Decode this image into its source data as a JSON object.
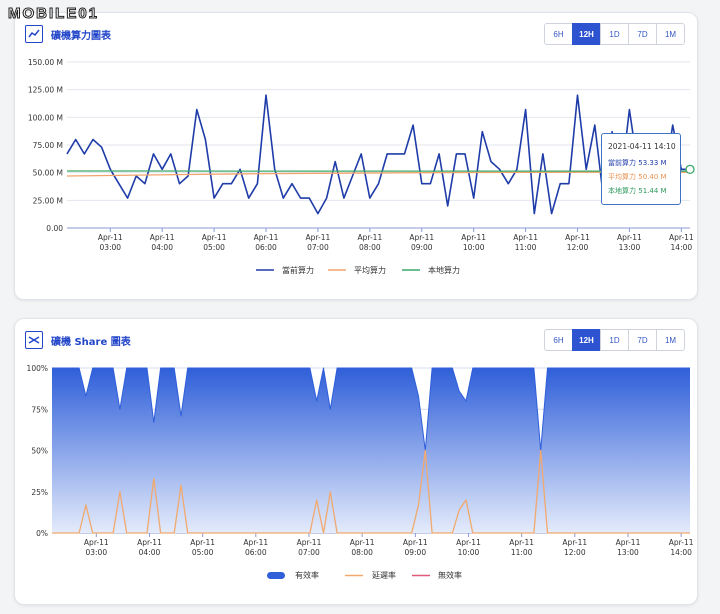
{
  "watermark": "MOBILE01",
  "colors": {
    "primary": "#2346c9",
    "hash_current": "#1f3ca8",
    "hash_avg": "#f0a56c",
    "hash_local": "#3aa86a",
    "valid": "#2f5fd9",
    "stale": "#f1a96e",
    "invalid": "#e05b7a"
  },
  "range_buttons": [
    {
      "label": "6H",
      "active": false
    },
    {
      "label": "12H",
      "active": true
    },
    {
      "label": "1D",
      "active": false
    },
    {
      "label": "7D",
      "active": false
    },
    {
      "label": "1M",
      "active": false
    }
  ],
  "hashrate_card": {
    "title": "礦機算力圖表",
    "icon": "line-chart-icon",
    "legend": [
      "當前算力",
      "平均算力",
      "本地算力"
    ],
    "tooltip": {
      "time": "2021-04-11 14:10",
      "rows": [
        {
          "label": "當前算力",
          "value": "53.33 M",
          "color": "#1f3ca8"
        },
        {
          "label": "平均算力",
          "value": "50.40 M",
          "color": "#f0a56c"
        },
        {
          "label": "本地算力",
          "value": "51.44 M",
          "color": "#3aa86a"
        }
      ]
    }
  },
  "share_card": {
    "title": "礦機 Share 圖表",
    "icon": "crossed-arrows-icon",
    "legend": [
      "有效率",
      "延遲率",
      "無效率"
    ]
  },
  "chart_data": [
    {
      "type": "line",
      "x_tick_labels": [
        [
          "Apr-11",
          "03:00"
        ],
        [
          "Apr-11",
          "04:00"
        ],
        [
          "Apr-11",
          "05:00"
        ],
        [
          "Apr-11",
          "06:00"
        ],
        [
          "Apr-11",
          "07:00"
        ],
        [
          "Apr-11",
          "08:00"
        ],
        [
          "Apr-11",
          "09:00"
        ],
        [
          "Apr-11",
          "10:00"
        ],
        [
          "Apr-11",
          "11:00"
        ],
        [
          "Apr-11",
          "12:00"
        ],
        [
          "Apr-11",
          "13:00"
        ],
        [
          "Apr-11",
          "14:00"
        ]
      ],
      "x_range": [
        "2021-04-11 02:10",
        "2021-04-11 14:10"
      ],
      "x_interval_minutes": 10,
      "y_tick_labels": [
        "0.00",
        "25.00 M",
        "50.00 M",
        "75.00 M",
        "100.00 M",
        "125.00 M",
        "150.00 M"
      ],
      "ylim": [
        0,
        150
      ],
      "grid": true,
      "legend_position": "bottom",
      "series": [
        {
          "name": "當前算力",
          "color": "#1f3ca8",
          "values": [
            67,
            80,
            67,
            80,
            73,
            53,
            40,
            27,
            47,
            40,
            67,
            53,
            67,
            40,
            47,
            107,
            80,
            27,
            40,
            40,
            53,
            27,
            40,
            120,
            53,
            27,
            40,
            27,
            27,
            13,
            27,
            60,
            27,
            47,
            67,
            27,
            40,
            67,
            67,
            67,
            93,
            40,
            40,
            67,
            20,
            67,
            67,
            27,
            87,
            60,
            53,
            40,
            53,
            107,
            13,
            67,
            13,
            40,
            40,
            120,
            53,
            93,
            27,
            87,
            40,
            107,
            53,
            67,
            60,
            40,
            93,
            53,
            53
          ]
        },
        {
          "name": "平均算力",
          "color": "#f0a56c",
          "values": [
            47,
            48,
            49,
            49.5,
            50,
            50.2,
            50.4,
            50.4
          ]
        },
        {
          "name": "本地算力",
          "color": "#3aa86a",
          "values": [
            51.5,
            51.5,
            51.4,
            51.4,
            51.4,
            51.4,
            51.44,
            51.44
          ]
        }
      ]
    },
    {
      "type": "area",
      "x_tick_labels": [
        [
          "Apr-11",
          "03:00"
        ],
        [
          "Apr-11",
          "04:00"
        ],
        [
          "Apr-11",
          "05:00"
        ],
        [
          "Apr-11",
          "06:00"
        ],
        [
          "Apr-11",
          "07:00"
        ],
        [
          "Apr-11",
          "08:00"
        ],
        [
          "Apr-11",
          "09:00"
        ],
        [
          "Apr-11",
          "10:00"
        ],
        [
          "Apr-11",
          "11:00"
        ],
        [
          "Apr-11",
          "12:00"
        ],
        [
          "Apr-11",
          "13:00"
        ],
        [
          "Apr-11",
          "14:00"
        ]
      ],
      "x_range": [
        "2021-04-11 02:10",
        "2021-04-11 14:10"
      ],
      "x_interval_minutes": 10,
      "y_tick_labels": [
        "0%",
        "25%",
        "50%",
        "75%",
        "100%"
      ],
      "ylim": [
        0,
        100
      ],
      "grid": true,
      "legend_position": "bottom",
      "series": [
        {
          "name": "有效率",
          "color": "#2f5fd9",
          "values": [
            100,
            100,
            100,
            100,
            100,
            83,
            100,
            100,
            100,
            100,
            75,
            100,
            100,
            100,
            100,
            67,
            100,
            100,
            100,
            71,
            100,
            100,
            100,
            100,
            100,
            100,
            100,
            100,
            100,
            100,
            100,
            100,
            100,
            100,
            100,
            100,
            100,
            100,
            100,
            80,
            100,
            75,
            100,
            100,
            100,
            100,
            100,
            100,
            100,
            100,
            100,
            100,
            100,
            100,
            83,
            50,
            100,
            100,
            100,
            100,
            86,
            80,
            100,
            100,
            100,
            100,
            100,
            100,
            100,
            100,
            100,
            100,
            50,
            100,
            100,
            100,
            100,
            100,
            100,
            100,
            100,
            100,
            100,
            100,
            100,
            100,
            100,
            100,
            100,
            100,
            100,
            100,
            100,
            100,
            100
          ]
        },
        {
          "name": "延遲率",
          "color": "#f1a96e",
          "values": [
            0,
            0,
            0,
            0,
            0,
            17,
            0,
            0,
            0,
            0,
            25,
            0,
            0,
            0,
            0,
            33,
            0,
            0,
            0,
            29,
            0,
            0,
            0,
            0,
            0,
            0,
            0,
            0,
            0,
            0,
            0,
            0,
            0,
            0,
            0,
            0,
            0,
            0,
            0,
            20,
            0,
            25,
            0,
            0,
            0,
            0,
            0,
            0,
            0,
            0,
            0,
            0,
            0,
            0,
            17,
            50,
            0,
            0,
            0,
            0,
            14,
            20,
            0,
            0,
            0,
            0,
            0,
            0,
            0,
            0,
            0,
            0,
            50,
            0,
            0,
            0,
            0,
            0,
            0,
            0,
            0,
            0,
            0,
            0,
            0,
            0,
            0,
            0,
            0,
            0,
            0,
            0,
            0,
            0,
            0
          ]
        },
        {
          "name": "無效率",
          "color": "#e05b7a",
          "values": [
            0,
            0,
            0,
            0,
            0,
            0,
            0,
            0,
            0,
            0,
            0,
            0,
            0,
            0,
            0,
            0,
            0,
            0,
            0,
            0,
            0,
            0,
            0,
            0,
            0,
            0,
            0,
            0,
            0,
            0,
            0,
            0,
            0,
            0,
            0,
            0,
            0,
            0,
            0,
            0,
            0,
            0,
            0,
            0,
            0,
            0,
            0,
            0,
            0,
            0,
            0,
            0,
            0,
            0,
            0,
            0,
            0,
            0,
            0,
            0,
            0,
            0,
            0,
            0,
            0,
            0,
            0,
            0,
            0,
            0,
            0,
            0,
            0,
            0,
            0,
            0,
            0,
            0,
            0,
            0,
            0,
            0,
            0,
            0,
            0,
            0,
            0,
            0,
            0,
            0,
            0,
            0,
            0,
            0,
            0
          ]
        }
      ]
    }
  ]
}
